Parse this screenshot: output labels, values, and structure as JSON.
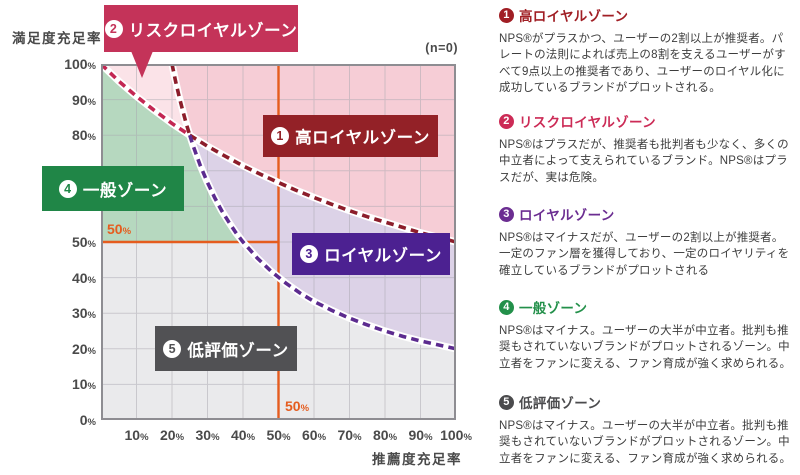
{
  "chart": {
    "y_axis_title": "満足度充足率",
    "x_axis_title": "推薦度充足率",
    "n_label": "(n=0)",
    "unit": "%",
    "y_tick_values": [
      100,
      90,
      80,
      70,
      60,
      50,
      40,
      30,
      20,
      10,
      0
    ],
    "x_tick_values": [
      10,
      20,
      30,
      40,
      50,
      60,
      70,
      80,
      90,
      100
    ],
    "crosshair_left_label": "50",
    "crosshair_bottom_label": "50"
  },
  "badges": [
    {
      "id": "risk_loyal",
      "digit": "2",
      "label": "リスクロイヤルゾーン",
      "color": "#c43359",
      "tail": true
    },
    {
      "id": "high_loyal",
      "digit": "1",
      "label": "高ロイヤルゾーン",
      "color": "#932127",
      "tail": false
    },
    {
      "id": "loyal",
      "digit": "3",
      "label": "ロイヤルゾーン",
      "color": "#4c2191",
      "tail": false
    },
    {
      "id": "general",
      "digit": "4",
      "label": "一般ゾーン",
      "color": "#208647",
      "tail": false
    },
    {
      "id": "low_rated",
      "digit": "5",
      "label": "低評価ゾーン",
      "color": "#515154",
      "tail": false
    }
  ],
  "legend_sections": [
    {
      "digit": "1",
      "title": "高ロイヤルゾーン",
      "color": "#a01e24",
      "body": "NPS®がプラスかつ、ユーザーの2割以上が推奨者。パレートの法則によれば売上の8割を支えるユーザーがすべて9点以上の推奨者であり、ユーザーのロイヤル化に成功しているブランドがプロットされる。"
    },
    {
      "digit": "2",
      "title": "リスクロイヤルゾーン",
      "color": "#cc2b56",
      "body": "NPS®はプラスだが、推奨者も批判者も少なく、多くの中立者によって支えられているブランド。NPS®はプラスだが、実は危険。"
    },
    {
      "digit": "3",
      "title": "ロイヤルゾーン",
      "color": "#6b2d91",
      "body": "NPS®はマイナスだが、ユーザーの2割以上が推奨者。一定のファン層を獲得しており、一定のロイヤリティを確立しているブランドがプロットされる"
    },
    {
      "digit": "4",
      "title": "一般ゾーン",
      "color": "#23904a",
      "body": "NPS®はマイナス。ユーザーの大半が中立者。批判も推奨もされていないブランドがプロットされるゾーン。中立者をファンに変える、ファン育成が強く求められる。"
    },
    {
      "digit": "5",
      "title": "低評価ゾーン",
      "color": "#4b4b4d",
      "body": "NPS®はマイナス。ユーザーの大半が中立者。批判も推奨もされていないブランドがプロットされるゾーン。中立者をファンに変える、ファン育成が強く求められる。"
    }
  ],
  "chart_data": {
    "type": "area",
    "title": "",
    "xlabel": "推薦度充足率",
    "ylabel": "満足度充足率",
    "sample_note": "(n=0)",
    "x_range": [
      0,
      100
    ],
    "y_range": [
      0,
      100
    ],
    "grid_step": 10,
    "grid": true,
    "crosshair": {
      "x": 50,
      "y": 50,
      "color": "#e55c1e",
      "horizontal_extent": [
        0,
        50
      ],
      "vertical_extent": [
        0,
        100
      ]
    },
    "zones": [
      {
        "id": "low_rated",
        "name": "低評価ゾーン",
        "color": "#eaeaec"
      },
      {
        "id": "general",
        "name": "一般ゾーン",
        "color": "#b6d8bf"
      },
      {
        "id": "risk_loyal",
        "name": "リスクロイヤルゾーン",
        "color": "#fbe3e8"
      },
      {
        "id": "high_loyal",
        "name": "高ロイヤルゾーン",
        "color": "#f6cdd6"
      },
      {
        "id": "loyal",
        "name": "ロイヤルゾーン",
        "color": "#dcd2e7"
      }
    ],
    "curves": [
      {
        "id": "satisfaction-boundary",
        "style": "dashed",
        "segments": [
          {
            "x_range": [
              0,
              25
            ],
            "color": "#c32753"
          },
          {
            "x_range": [
              25,
              100
            ],
            "color": "#8c1d2b"
          }
        ],
        "points": [
          [
            0,
            100
          ],
          [
            5,
            95.2
          ],
          [
            10,
            90.9
          ],
          [
            15,
            87
          ],
          [
            20,
            83.3
          ],
          [
            25,
            80
          ],
          [
            30,
            76.9
          ],
          [
            35,
            74.1
          ],
          [
            40,
            71.4
          ],
          [
            45,
            69
          ],
          [
            50,
            66.7
          ],
          [
            55,
            64.5
          ],
          [
            60,
            62.5
          ],
          [
            65,
            60.6
          ],
          [
            70,
            58.8
          ],
          [
            75,
            57.1
          ],
          [
            80,
            55.6
          ],
          [
            85,
            54.1
          ],
          [
            90,
            52.6
          ],
          [
            95,
            51.3
          ],
          [
            100,
            50
          ]
        ]
      },
      {
        "id": "recommendation-boundary",
        "style": "dashed",
        "segments": [
          {
            "x_range": [
              20,
              25
            ],
            "color": "#8c1d2b"
          },
          {
            "x_range": [
              25,
              100
            ],
            "color": "#5c2b8f"
          }
        ],
        "points": [
          [
            20,
            100
          ],
          [
            21,
            95.2
          ],
          [
            22,
            90.9
          ],
          [
            23,
            87
          ],
          [
            24,
            83.3
          ],
          [
            25,
            80
          ],
          [
            26,
            76.9
          ],
          [
            28,
            71.4
          ],
          [
            30,
            66.7
          ],
          [
            32,
            62.5
          ],
          [
            34,
            58.8
          ],
          [
            36,
            55.6
          ],
          [
            38,
            52.6
          ],
          [
            40,
            50
          ],
          [
            44,
            45.5
          ],
          [
            48,
            41.7
          ],
          [
            52,
            38.5
          ],
          [
            56,
            35.7
          ],
          [
            60,
            33.3
          ],
          [
            65,
            30.8
          ],
          [
            70,
            28.6
          ],
          [
            75,
            26.7
          ],
          [
            80,
            25
          ],
          [
            85,
            23.5
          ],
          [
            90,
            22.2
          ],
          [
            95,
            21.1
          ],
          [
            100,
            20
          ]
        ]
      }
    ],
    "crossing_point": [
      25,
      80
    ]
  },
  "style": {
    "grid_color": "#a9a8b0",
    "border_color": "#8e8d92",
    "tick_color": "#4a4a4a",
    "base_bg": "#ffffff"
  }
}
